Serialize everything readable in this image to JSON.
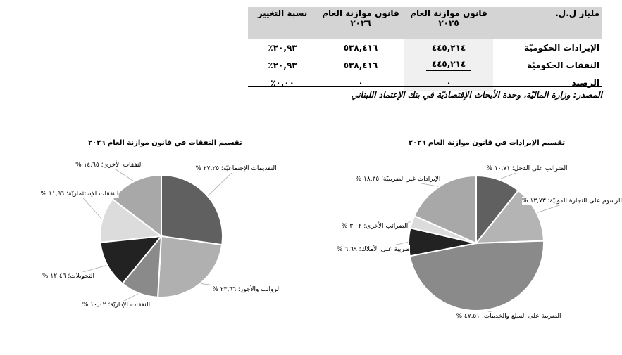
{
  "table": {
    "headers": [
      "مليار ل.ل.",
      "قانون موازنة العام ٢٠٢٥",
      "قانون موازنة العام ٢٠٢٦",
      "نسبة التغيير"
    ],
    "rows": [
      {
        "label": "الإيرادات الحكوميّة",
        "y2025": "٤٤٥,٢١٤",
        "y2026": "٥٣٨,٤١٦",
        "change": "٢٠,٩٣٪"
      },
      {
        "label": "النفقات الحكوميّة",
        "y2025": "٤٤٥,٢١٤",
        "y2026": "٥٣٨,٤١٦",
        "change": "٢٠,٩٣٪"
      },
      {
        "label": "الرصيد",
        "y2025": "٠",
        "y2026": "٠",
        "change": "٠,٠٠٪"
      }
    ],
    "source": "المصدر: وزارة الماليّة، وحدة الأبحاث الإقتصاديّة في بنك الإعتماد اللبناني"
  },
  "chart_data": [
    {
      "type": "pie",
      "title": "تقسيم النفقات في قانون موازنة العام ٢٠٢٦",
      "slices": [
        {
          "label": "التقديمات الإجتماعيّة؛ ٢٧,٢٥ %",
          "value": 27.25,
          "color": "#606060"
        },
        {
          "label": "الرواتب والأجور؛ ٢٣,٦٦ %",
          "value": 23.66,
          "color": "#b0b0b0"
        },
        {
          "label": "النفقات الإداريّة؛ ١٠,٠٢ %",
          "value": 10.02,
          "color": "#8a8a8a"
        },
        {
          "label": "التحويلات؛ ١٢,٤٦ %",
          "value": 12.46,
          "color": "#222222"
        },
        {
          "label": "النفقات الإستثماريّة؛ ١١,٩٦ %",
          "value": 11.96,
          "color": "#dcdcdc"
        },
        {
          "label": "النفقات الأخرى؛ ١٤,٦٥ %",
          "value": 14.65,
          "color": "#a8a8a8"
        }
      ]
    },
    {
      "type": "pie",
      "title": "تقسيم الإيرادات في قانون موازنة العام ٢٠٢٦",
      "slices": [
        {
          "label": "الضرائب على الدخل؛ ١٠,٧١ %",
          "value": 10.71,
          "color": "#606060"
        },
        {
          "label": "الرسوم على التجارة الدوليّة؛ ١٣,٧٣ %",
          "value": 13.73,
          "color": "#b4b4b4"
        },
        {
          "label": "الضريبة على السلع والخدمات؛ ٤٧,٥١ %",
          "value": 47.51,
          "color": "#8a8a8a"
        },
        {
          "label": "ضريبة على الأملاك؛ ٦,٦٩ %",
          "value": 6.69,
          "color": "#222222"
        },
        {
          "label": "الضرائب الأخرى؛ ٣,٠٢ %",
          "value": 3.02,
          "color": "#dcdcdc"
        },
        {
          "label": "الإيرادات غير الضريبيّة؛ ١٨,٣٥ %",
          "value": 18.35,
          "color": "#a8a8a8"
        }
      ]
    }
  ]
}
